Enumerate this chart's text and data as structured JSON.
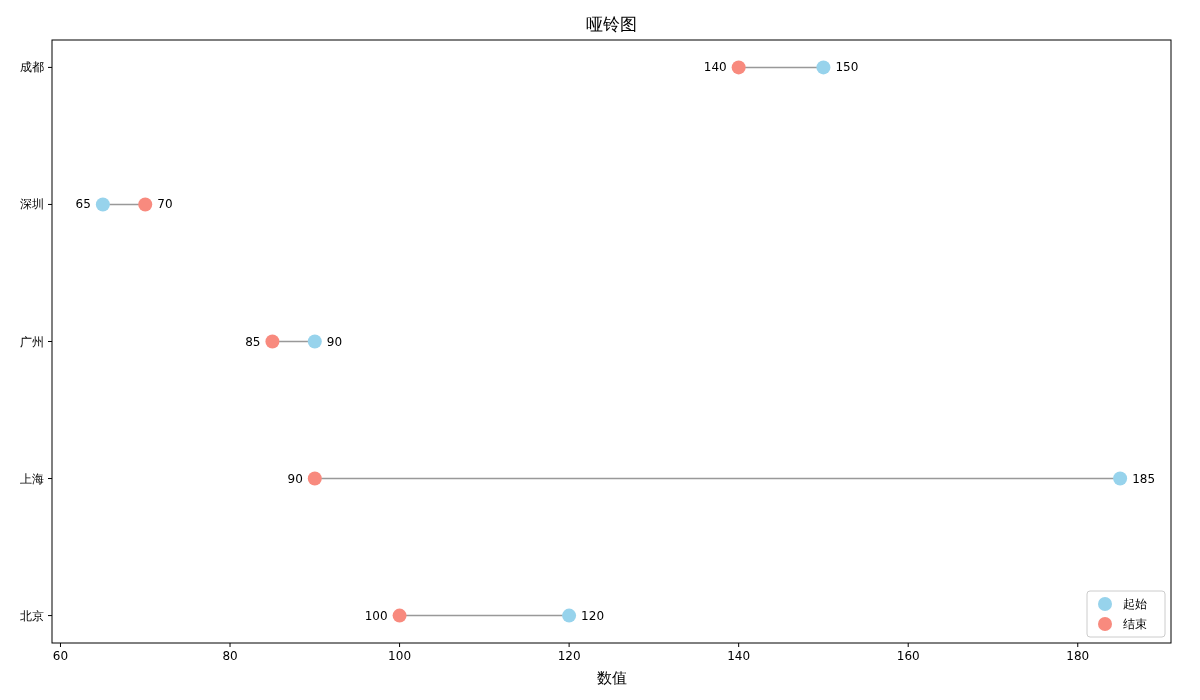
{
  "chart_data": {
    "type": "scatter",
    "orientation": "horizontal",
    "title": "哑铃图",
    "xlabel": "数值",
    "categories": [
      "成都",
      "深圳",
      "广州",
      "上海",
      "北京"
    ],
    "series": [
      {
        "name": "起始",
        "color": "#97d3ec",
        "values": [
          150,
          65,
          90,
          185,
          120
        ]
      },
      {
        "name": "结束",
        "color": "#f88a7e",
        "values": [
          140,
          70,
          85,
          90,
          100
        ]
      }
    ],
    "xlim": [
      59,
      191
    ],
    "xticks": [
      60,
      80,
      100,
      120,
      140,
      160,
      180
    ],
    "data_labels": true,
    "legend": "bottom right",
    "grid": false
  }
}
